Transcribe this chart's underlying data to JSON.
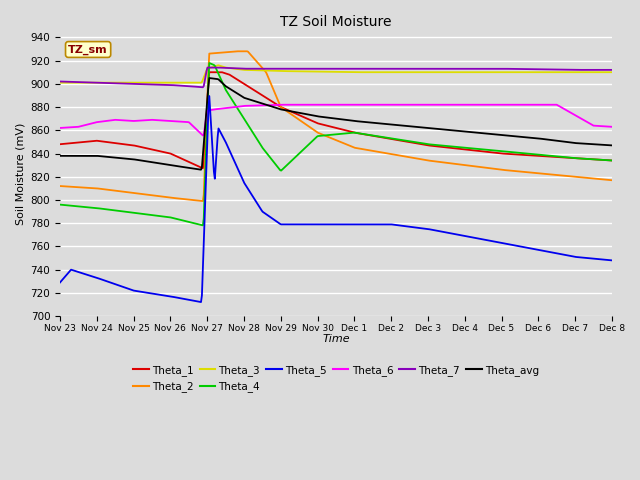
{
  "title": "TZ Soil Moisture",
  "ylabel": "Soil Moisture (mV)",
  "xlabel": "Time",
  "ylim": [
    700,
    945
  ],
  "yticks": [
    700,
    720,
    740,
    760,
    780,
    800,
    820,
    840,
    860,
    880,
    900,
    920,
    940
  ],
  "bg_color": "#dcdcdc",
  "plot_bg_color": "#dcdcdc",
  "grid_color": "#ffffff",
  "label_box": "TZ_sm",
  "series_colors": {
    "Theta_1": "#dd0000",
    "Theta_2": "#ff8800",
    "Theta_3": "#dddd00",
    "Theta_4": "#00cc00",
    "Theta_5": "#0000ee",
    "Theta_6": "#ff00ff",
    "Theta_7": "#8800bb",
    "Theta_avg": "#000000"
  },
  "xtick_labels": [
    "Nov 23",
    "Nov 24",
    "Nov 25",
    "Nov 26",
    "Nov 27",
    "Nov 28",
    "Nov 29",
    "Nov 30",
    "Dec 1",
    "Dec 2",
    "Dec 3",
    "Dec 4",
    "Dec 5",
    "Dec 6",
    "Dec 7",
    "Dec 8"
  ]
}
